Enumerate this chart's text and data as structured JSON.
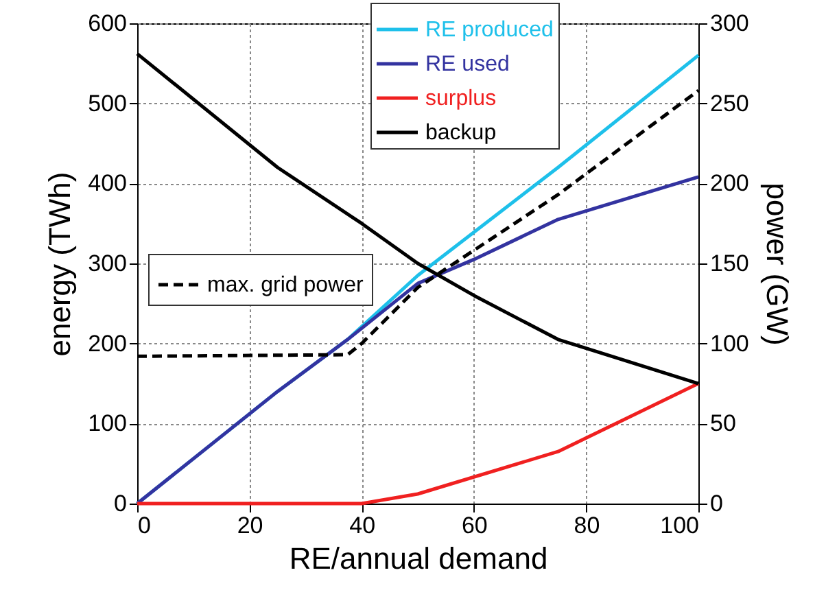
{
  "chart_data": {
    "type": "line",
    "xlabel": "RE/annual demand",
    "ylabel": "energy (TWh)",
    "y2label": "power (GW)",
    "xlim": [
      0,
      100
    ],
    "xticks": [
      0,
      20,
      40,
      60,
      80,
      100
    ],
    "ylim": [
      0,
      600
    ],
    "yticks": [
      0,
      100,
      200,
      300,
      400,
      500,
      600
    ],
    "y2lim": [
      0,
      300
    ],
    "y2ticks": [
      0,
      50,
      100,
      150,
      200,
      250,
      300
    ],
    "grid": true,
    "legend": "top",
    "line_style": "solid",
    "series": [
      {
        "name": "RE produced",
        "color": "#1ec0ea",
        "x": [
          0,
          25,
          37.5,
          50,
          75,
          100
        ],
        "values": [
          0,
          140,
          205,
          285,
          420,
          560
        ]
      },
      {
        "name": "RE used",
        "color": "#3333a0",
        "x": [
          0,
          25,
          37.5,
          50,
          60,
          75,
          100
        ],
        "values": [
          0,
          140,
          205,
          275,
          305,
          355,
          408
        ]
      },
      {
        "name": "surplus",
        "color": "#f02020",
        "x": [
          0,
          40,
          50,
          75,
          100
        ],
        "values": [
          0,
          0,
          12,
          65,
          150
        ]
      },
      {
        "name": "backup",
        "color": "#000000",
        "x": [
          0,
          25,
          40,
          50,
          60,
          75,
          100
        ],
        "values": [
          562,
          420,
          350,
          300,
          260,
          205,
          150
        ]
      },
      {
        "name": "max. grid power",
        "color": "#000000",
        "axis": "y2",
        "line_style": "dashed",
        "x": [
          0,
          37.5,
          40,
          50,
          75,
          100
        ],
        "values": [
          92,
          93,
          100,
          135,
          193,
          258
        ]
      }
    ]
  }
}
